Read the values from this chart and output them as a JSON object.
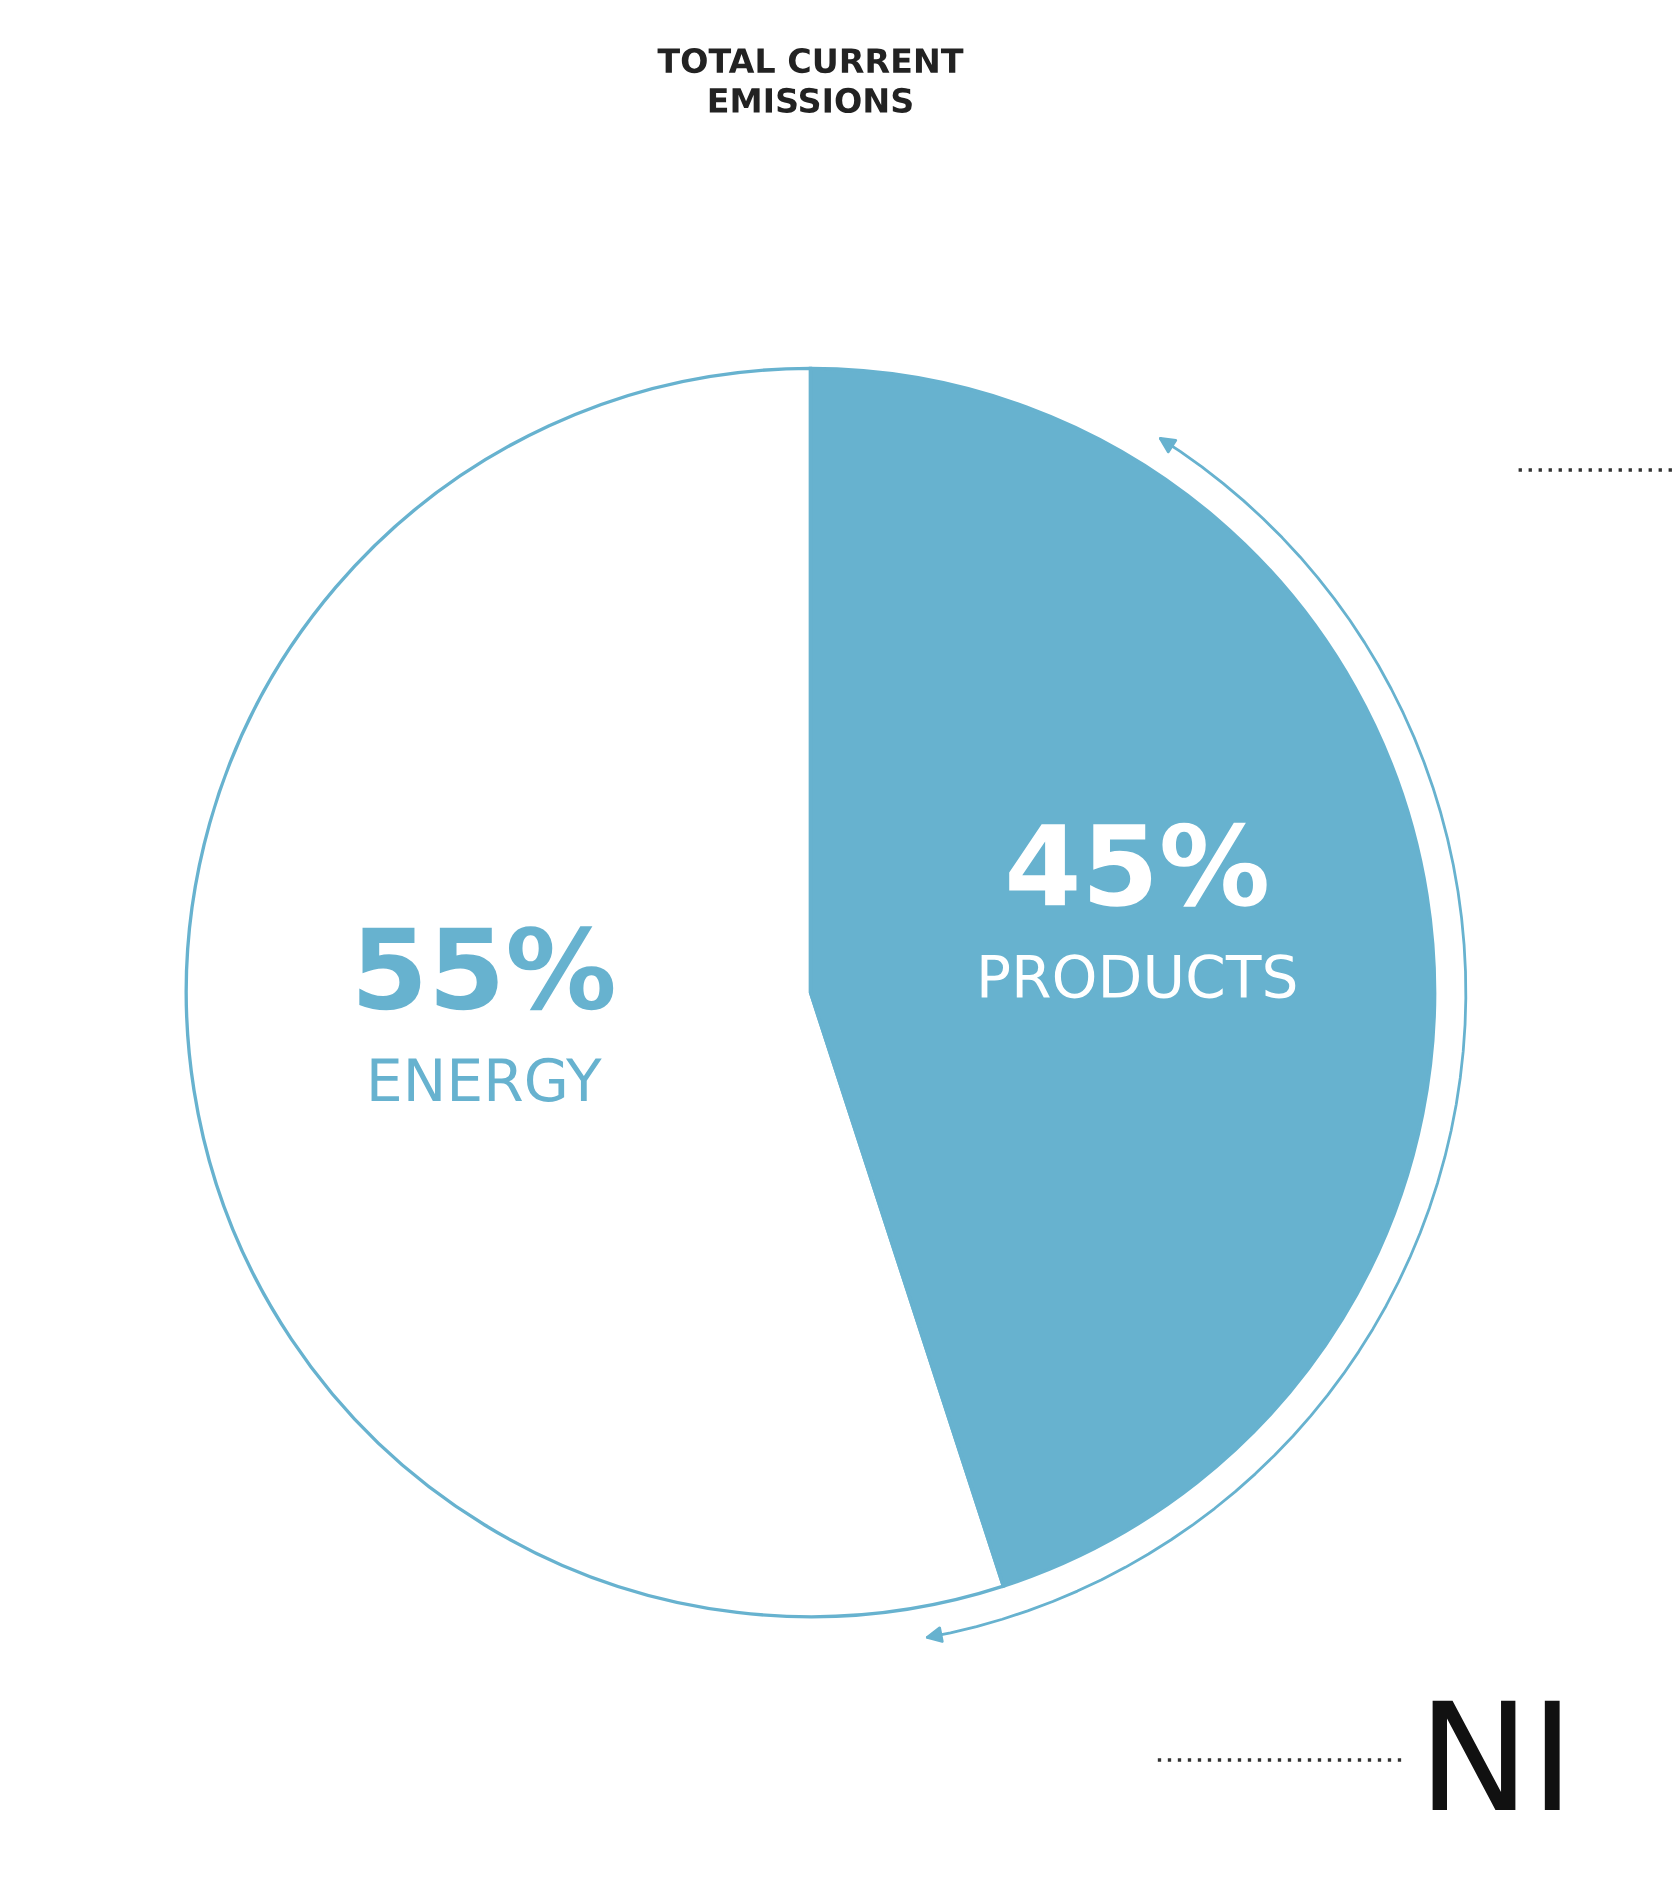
{
  "chart_data": {
    "type": "pie",
    "title": "TOTAL CURRENT\nEMISSIONS",
    "categories": [
      "ENERGY",
      "PRODUCTS"
    ],
    "values": [
      55,
      45
    ],
    "colors": [
      "#ffffff",
      "#67b2cf"
    ],
    "value_labels": [
      "55%",
      "45%"
    ],
    "annotations": [
      "NI"
    ]
  }
}
